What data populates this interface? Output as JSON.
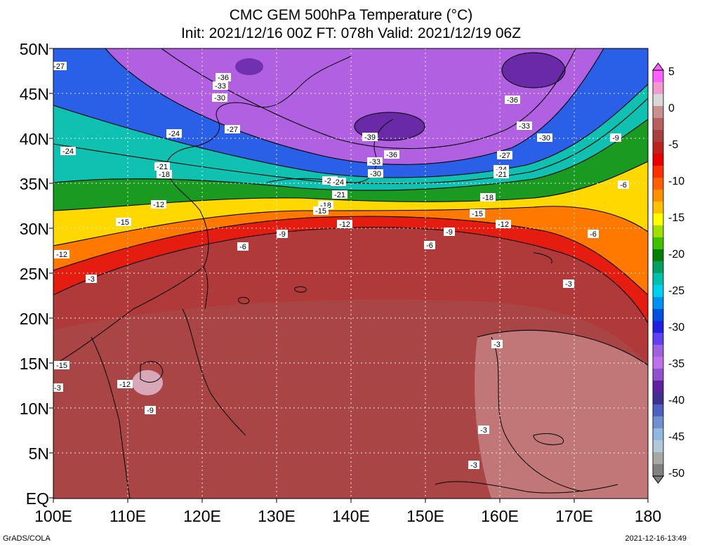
{
  "title_line1": "CMC GEM 500hPa Temperature (°C)",
  "title_line2": "Init: 2021/12/16 00Z  FT: 078h  Valid: 2021/12/19 06Z",
  "lat_labels": [
    "50N",
    "45N",
    "40N",
    "35N",
    "30N",
    "25N",
    "20N",
    "15N",
    "10N",
    "5N",
    "EQ"
  ],
  "lon_labels": [
    "100E",
    "110E",
    "120E",
    "130E",
    "140E",
    "150E",
    "160E",
    "170E",
    "180"
  ],
  "colorbar": {
    "labels": [
      "5",
      "0",
      "-5",
      "-10",
      "-15",
      "-20",
      "-25",
      "-30",
      "-35",
      "-40",
      "-45",
      "-50"
    ],
    "colors": [
      "#ff60ff",
      "#f09ad0",
      "#d8d8d8",
      "#c89090",
      "#b86060",
      "#a84040",
      "#c02020",
      "#e80000",
      "#ff3000",
      "#ff6000",
      "#ff9000",
      "#ffc000",
      "#ffff00",
      "#a0e000",
      "#40c000",
      "#008000",
      "#00a060",
      "#00c0b0",
      "#00d0f0",
      "#0090f0",
      "#0050e0",
      "#2020e0",
      "#6040f0",
      "#a060e0",
      "#c070e8",
      "#9050d0",
      "#6020a0",
      "#403090",
      "#5060c0",
      "#7090d0",
      "#90b8e0",
      "#b0c8d8",
      "#a8a8a8",
      "#808080"
    ]
  },
  "contour_labels": [
    "-27",
    "-36",
    "-33",
    "-30",
    "-24",
    "-27",
    "-24",
    "-21",
    "-18",
    "-39",
    "-36",
    "-33",
    "-30",
    "-27",
    "-24",
    "-21",
    "-18",
    "-15",
    "-12",
    "-9",
    "-6",
    "-3",
    "-15",
    "-12",
    "-9",
    "-36",
    "-33",
    "-30",
    "-27",
    "-24",
    "-21",
    "-18",
    "-15",
    "-12",
    "-9",
    "-6",
    "-3",
    "-3",
    "-3",
    "-3",
    "-3",
    "-12",
    "-6",
    "-6",
    "-9",
    "-12",
    "-15"
  ],
  "footer_left": "GrADS/COLA",
  "footer_right": "2021-12-16-13:49"
}
